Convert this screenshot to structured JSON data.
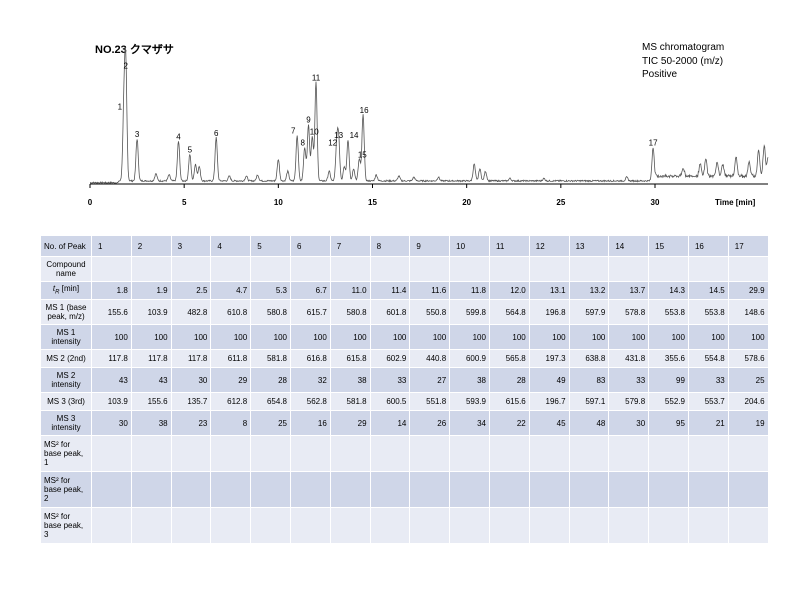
{
  "title": "NO.23 クマザサ",
  "info": {
    "line1": "MS chromatogram",
    "line2": "TIC 50-2000 (m/z)",
    "line3": "Positive"
  },
  "chart_data": {
    "type": "line",
    "xlabel": "Time [min]",
    "xlim": [
      0,
      36
    ],
    "x_ticks": [
      0,
      5,
      10,
      15,
      20,
      25,
      30
    ],
    "peaks": [
      {
        "label": "1",
        "x": 1.8,
        "y": 0.58
      },
      {
        "label": "2",
        "x": 1.9,
        "y": 0.92
      },
      {
        "label": "3",
        "x": 2.5,
        "y": 0.35
      },
      {
        "label": "4",
        "x": 4.7,
        "y": 0.33
      },
      {
        "label": "5",
        "x": 5.3,
        "y": 0.22
      },
      {
        "label": "6",
        "x": 6.7,
        "y": 0.36
      },
      {
        "label": "7",
        "x": 11.0,
        "y": 0.38
      },
      {
        "label": "8",
        "x": 11.4,
        "y": 0.28
      },
      {
        "label": "9",
        "x": 11.6,
        "y": 0.47
      },
      {
        "label": "10",
        "x": 11.8,
        "y": 0.37
      },
      {
        "label": "11",
        "x": 12.0,
        "y": 0.82
      },
      {
        "label": "12",
        "x": 13.1,
        "y": 0.28
      },
      {
        "label": "13",
        "x": 13.2,
        "y": 0.34
      },
      {
        "label": "14",
        "x": 13.7,
        "y": 0.34
      },
      {
        "label": "15",
        "x": 14.3,
        "y": 0.18
      },
      {
        "label": "16",
        "x": 14.5,
        "y": 0.55
      },
      {
        "label": "17",
        "x": 29.9,
        "y": 0.28
      }
    ]
  },
  "table": {
    "header_label": "No. of Peak",
    "peaks": [
      "1",
      "2",
      "3",
      "4",
      "5",
      "6",
      "7",
      "8",
      "9",
      "10",
      "11",
      "12",
      "13",
      "14",
      "15",
      "16",
      "17"
    ],
    "rows": [
      {
        "label": "Compound name",
        "values": [
          "",
          "",
          "",
          "",
          "",
          "",
          "",
          "",
          "",
          "",
          "",
          "",
          "",
          "",
          "",
          "",
          ""
        ]
      },
      {
        "label": "tR [min]",
        "values": [
          "1.8",
          "1.9",
          "2.5",
          "4.7",
          "5.3",
          "6.7",
          "11.0",
          "11.4",
          "11.6",
          "11.8",
          "12.0",
          "13.1",
          "13.2",
          "13.7",
          "14.3",
          "14.5",
          "29.9"
        ]
      },
      {
        "label": "MS 1 (base peak, m/z)",
        "values": [
          "155.6",
          "103.9",
          "482.8",
          "610.8",
          "580.8",
          "615.7",
          "580.8",
          "601.8",
          "550.8",
          "599.8",
          "564.8",
          "196.8",
          "597.9",
          "578.8",
          "553.8",
          "553.8",
          "148.6"
        ]
      },
      {
        "label": "MS 1 intensity",
        "values": [
          "100",
          "100",
          "100",
          "100",
          "100",
          "100",
          "100",
          "100",
          "100",
          "100",
          "100",
          "100",
          "100",
          "100",
          "100",
          "100",
          "100"
        ]
      },
      {
        "label": "MS 2 (2nd)",
        "values": [
          "117.8",
          "117.8",
          "117.8",
          "611.8",
          "581.8",
          "616.8",
          "615.8",
          "602.9",
          "440.8",
          "600.9",
          "565.8",
          "197.3",
          "638.8",
          "431.8",
          "355.6",
          "554.8",
          "578.6"
        ]
      },
      {
        "label": "MS 2 intensity",
        "values": [
          "43",
          "43",
          "30",
          "29",
          "28",
          "32",
          "38",
          "33",
          "27",
          "38",
          "28",
          "49",
          "83",
          "33",
          "99",
          "33",
          "25"
        ]
      },
      {
        "label": "MS 3 (3rd)",
        "values": [
          "103.9",
          "155.6",
          "135.7",
          "612.8",
          "654.8",
          "562.8",
          "581.8",
          "600.5",
          "551.8",
          "593.9",
          "615.6",
          "196.7",
          "597.1",
          "579.8",
          "552.9",
          "553.7",
          "204.6"
        ]
      },
      {
        "label": "MS 3 intensity",
        "values": [
          "30",
          "38",
          "23",
          "8",
          "25",
          "16",
          "29",
          "14",
          "26",
          "34",
          "22",
          "45",
          "48",
          "30",
          "95",
          "21",
          "19"
        ]
      },
      {
        "label": "MS² for base peak, 1",
        "values": [
          "",
          "",
          "",
          "",
          "",
          "",
          "",
          "",
          "",
          "",
          "",
          "",
          "",
          "",
          "",
          "",
          ""
        ]
      },
      {
        "label": "MS² for base peak, 2",
        "values": [
          "",
          "",
          "",
          "",
          "",
          "",
          "",
          "",
          "",
          "",
          "",
          "",
          "",
          "",
          "",
          "",
          ""
        ]
      },
      {
        "label": "MS² for base peak, 3",
        "values": [
          "",
          "",
          "",
          "",
          "",
          "",
          "",
          "",
          "",
          "",
          "",
          "",
          "",
          "",
          "",
          "",
          ""
        ]
      }
    ]
  }
}
